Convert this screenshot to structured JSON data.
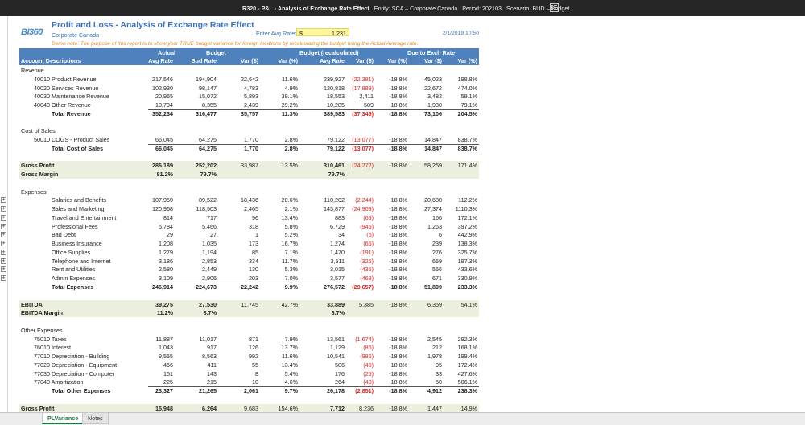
{
  "window": {
    "report_code": "R320 - P&L - Analysis of Exchange Rate Effect",
    "entity": "Entity: SCA – Corporate Canada",
    "period": "Period: 202103",
    "scenario": "Scenario: BUD – Budget"
  },
  "report": {
    "logo": "BI360",
    "title": "Profit and Loss - Analysis of Exchange Rate Effect",
    "subtitle": "Corporate Canada",
    "avg_rate_label": "Enter Avg Rate:",
    "avg_rate_currency": "$",
    "avg_rate_value": "1.231",
    "date": "2/1/2019 10:50",
    "note": "Demo note: The purpose of this report is to show your TRUE budget variance for foreign locations by recalculating the budget using the Actual Average rate."
  },
  "header": {
    "group_actual": "Actual",
    "group_budget": "Budget",
    "group_budget_recalc": "Budget (recalculated)",
    "group_due": "Due to Exch Rate",
    "account_descriptions": "Account Descriptions",
    "cols": [
      "Avg Rate",
      "Bud Rate",
      "Var ($)",
      "Var (%)",
      "Avg Rate",
      "Var ($)",
      "Var (%)",
      "Var ($)",
      "Var (%)"
    ]
  },
  "rows": [
    {
      "label": "Revenue",
      "level": 0,
      "kind": "section",
      "values": []
    },
    {
      "label": "40010 Product Revenue",
      "level": 1,
      "kind": "data",
      "values": [
        "217,546",
        "194,904",
        "22,642",
        "11.6%",
        "239,927",
        "(22,381)",
        "-18.8%",
        "45,023",
        "198.8%"
      ]
    },
    {
      "label": "40020 Services Revenue",
      "level": 1,
      "kind": "data",
      "values": [
        "102,930",
        "98,147",
        "4,783",
        "4.9%",
        "120,818",
        "(17,889)",
        "-18.8%",
        "22,672",
        "474.0%"
      ]
    },
    {
      "label": "40030 Maintenance Revenue",
      "level": 1,
      "kind": "data",
      "values": [
        "20,965",
        "15,072",
        "5,893",
        "39.1%",
        "18,553",
        "2,411",
        "-18.8%",
        "3,482",
        "59.1%"
      ]
    },
    {
      "label": "40040 Other Revenue",
      "level": 1,
      "kind": "data",
      "values": [
        "10,794",
        "8,355",
        "2,439",
        "29.2%",
        "10,285",
        "509",
        "-18.8%",
        "1,930",
        "79.1%"
      ]
    },
    {
      "label": "Total Revenue",
      "level": 2,
      "kind": "total",
      "values": [
        "352,234",
        "316,477",
        "35,757",
        "11.3%",
        "389,583",
        "(37,349)",
        "-18.8%",
        "73,106",
        "204.5%"
      ]
    },
    {
      "label": "",
      "level": 0,
      "kind": "blank",
      "values": []
    },
    {
      "label": "Cost of Sales",
      "level": 0,
      "kind": "section",
      "values": []
    },
    {
      "label": "50010 COGS - Product Sales",
      "level": 1,
      "kind": "data",
      "values": [
        "66,045",
        "64,275",
        "1,770",
        "2.8%",
        "79,122",
        "(13,077)",
        "-18.8%",
        "14,847",
        "838.7%"
      ]
    },
    {
      "label": "Total Cost of Sales",
      "level": 2,
      "kind": "total",
      "values": [
        "66,045",
        "64,275",
        "1,770",
        "2.8%",
        "79,122",
        "(13,077)",
        "-18.8%",
        "14,847",
        "838.7%"
      ]
    },
    {
      "label": "",
      "level": 0,
      "kind": "blank",
      "values": []
    },
    {
      "label": "Gross Profit",
      "level": 0,
      "kind": "shade",
      "values": [
        "286,189",
        "252,202",
        "33,987",
        "13.5%",
        "310,461",
        "(24,272)",
        "-18.8%",
        "58,259",
        "171.4%"
      ]
    },
    {
      "label": "Gross Margin",
      "level": 0,
      "kind": "shade-margin",
      "values": [
        "81.2%",
        "79.7%",
        "",
        "",
        "79.7%",
        "",
        "",
        "",
        ""
      ]
    },
    {
      "label": "",
      "level": 0,
      "kind": "blank",
      "values": []
    },
    {
      "label": "Expenses",
      "level": 0,
      "kind": "section",
      "values": []
    },
    {
      "label": "Salaries and Benefits",
      "level": 2,
      "kind": "data",
      "values": [
        "107,959",
        "89,522",
        "18,436",
        "20.6%",
        "110,202",
        "(2,244)",
        "-18.8%",
        "20,680",
        "112.2%"
      ]
    },
    {
      "label": "Sales and Marketing",
      "level": 2,
      "kind": "data",
      "values": [
        "120,968",
        "118,503",
        "2,465",
        "2.1%",
        "145,877",
        "(24,909)",
        "-18.8%",
        "27,374",
        "1110.3%"
      ]
    },
    {
      "label": "Travel and Entertainment",
      "level": 2,
      "kind": "data",
      "values": [
        "814",
        "717",
        "96",
        "13.4%",
        "883",
        "(69)",
        "-18.8%",
        "166",
        "172.1%"
      ]
    },
    {
      "label": "Professional Fees",
      "level": 2,
      "kind": "data",
      "values": [
        "5,784",
        "5,466",
        "318",
        "5.8%",
        "6,729",
        "(945)",
        "-18.8%",
        "1,263",
        "397.2%"
      ]
    },
    {
      "label": "Bad Debt",
      "level": 2,
      "kind": "data",
      "values": [
        "29",
        "27",
        "1",
        "5.2%",
        "34",
        "(5)",
        "-18.8%",
        "6",
        "442.9%"
      ]
    },
    {
      "label": "Business Insurance",
      "level": 2,
      "kind": "data",
      "values": [
        "1,208",
        "1,035",
        "173",
        "16.7%",
        "1,274",
        "(66)",
        "-18.8%",
        "239",
        "138.3%"
      ]
    },
    {
      "label": "Office Supplies",
      "level": 2,
      "kind": "data",
      "values": [
        "1,279",
        "1,194",
        "85",
        "7.1%",
        "1,470",
        "(191)",
        "-18.8%",
        "276",
        "325.7%"
      ]
    },
    {
      "label": "Telephone and Internet",
      "level": 2,
      "kind": "data",
      "values": [
        "3,186",
        "2,853",
        "334",
        "11.7%",
        "3,511",
        "(325)",
        "-18.8%",
        "659",
        "197.3%"
      ]
    },
    {
      "label": "Rent and Utilities",
      "level": 2,
      "kind": "data",
      "values": [
        "2,580",
        "2,449",
        "130",
        "5.3%",
        "3,015",
        "(435)",
        "-18.8%",
        "566",
        "433.6%"
      ]
    },
    {
      "label": "Admin Expenses",
      "level": 2,
      "kind": "data",
      "values": [
        "3,109",
        "2,906",
        "203",
        "7.0%",
        "3,577",
        "(468)",
        "-18.8%",
        "671",
        "330.9%"
      ]
    },
    {
      "label": "Total Expenses",
      "level": 2,
      "kind": "total",
      "values": [
        "246,914",
        "224,673",
        "22,242",
        "9.9%",
        "276,572",
        "(29,657)",
        "-18.8%",
        "51,899",
        "233.3%"
      ]
    },
    {
      "label": "",
      "level": 0,
      "kind": "blank",
      "values": []
    },
    {
      "label": "EBITDA",
      "level": 0,
      "kind": "shade",
      "values": [
        "39,275",
        "27,530",
        "11,745",
        "42.7%",
        "33,889",
        "5,385",
        "-18.8%",
        "6,359",
        "54.1%"
      ]
    },
    {
      "label": "EBITDA Margin",
      "level": 0,
      "kind": "shade-margin",
      "values": [
        "11.2%",
        "8.7%",
        "",
        "",
        "8.7%",
        "",
        "",
        "",
        ""
      ]
    },
    {
      "label": "",
      "level": 0,
      "kind": "blank",
      "values": []
    },
    {
      "label": "Other Expenses",
      "level": 0,
      "kind": "section",
      "values": []
    },
    {
      "label": "75010 Taxes",
      "level": 1,
      "kind": "data",
      "values": [
        "11,887",
        "11,017",
        "871",
        "7.9%",
        "13,561",
        "(1,674)",
        "-18.8%",
        "2,545",
        "292.3%"
      ]
    },
    {
      "label": "76010 Interest",
      "level": 1,
      "kind": "data",
      "values": [
        "1,043",
        "917",
        "126",
        "13.7%",
        "1,129",
        "(86)",
        "-18.8%",
        "212",
        "168.1%"
      ]
    },
    {
      "label": "77010 Depreciation - Building",
      "level": 1,
      "kind": "data",
      "values": [
        "9,555",
        "8,563",
        "992",
        "11.6%",
        "10,541",
        "(986)",
        "-18.8%",
        "1,978",
        "199.4%"
      ]
    },
    {
      "label": "77020 Depreciation - Equipment",
      "level": 1,
      "kind": "data",
      "values": [
        "466",
        "411",
        "55",
        "13.4%",
        "506",
        "(40)",
        "-18.8%",
        "95",
        "172.4%"
      ]
    },
    {
      "label": "77030 Depreciation - Computer",
      "level": 1,
      "kind": "data",
      "values": [
        "151",
        "143",
        "8",
        "5.4%",
        "176",
        "(25)",
        "-18.8%",
        "33",
        "427.6%"
      ]
    },
    {
      "label": "77040 Amortization",
      "level": 1,
      "kind": "data",
      "values": [
        "225",
        "215",
        "10",
        "4.6%",
        "264",
        "(40)",
        "-18.8%",
        "50",
        "506.1%"
      ]
    },
    {
      "label": "Total Other Expenses",
      "level": 2,
      "kind": "total",
      "values": [
        "23,327",
        "21,265",
        "2,061",
        "9.7%",
        "26,178",
        "(2,851)",
        "-18.8%",
        "4,912",
        "238.3%"
      ]
    },
    {
      "label": "",
      "level": 0,
      "kind": "blank",
      "values": []
    },
    {
      "label": "Gross Profit",
      "level": 0,
      "kind": "shade",
      "values": [
        "15,948",
        "6,264",
        "9,683",
        "154.6%",
        "7,712",
        "8,236",
        "-18.8%",
        "1,447",
        "14.9%"
      ]
    },
    {
      "label": "Gross Margin",
      "level": 0,
      "kind": "shade-margin",
      "values": [
        "4.5%",
        "2.0%",
        "",
        "",
        "2.0%",
        "",
        "",
        "",
        ""
      ]
    }
  ],
  "tabs": [
    "PLVariance",
    "Notes"
  ],
  "active_tab": "PLVariance",
  "colors": {
    "header_bg": "#4f81bd",
    "shade_bg": "#ebf0de",
    "negative": "#e02020",
    "title": "#3d72b4",
    "note": "#e38a1e"
  }
}
